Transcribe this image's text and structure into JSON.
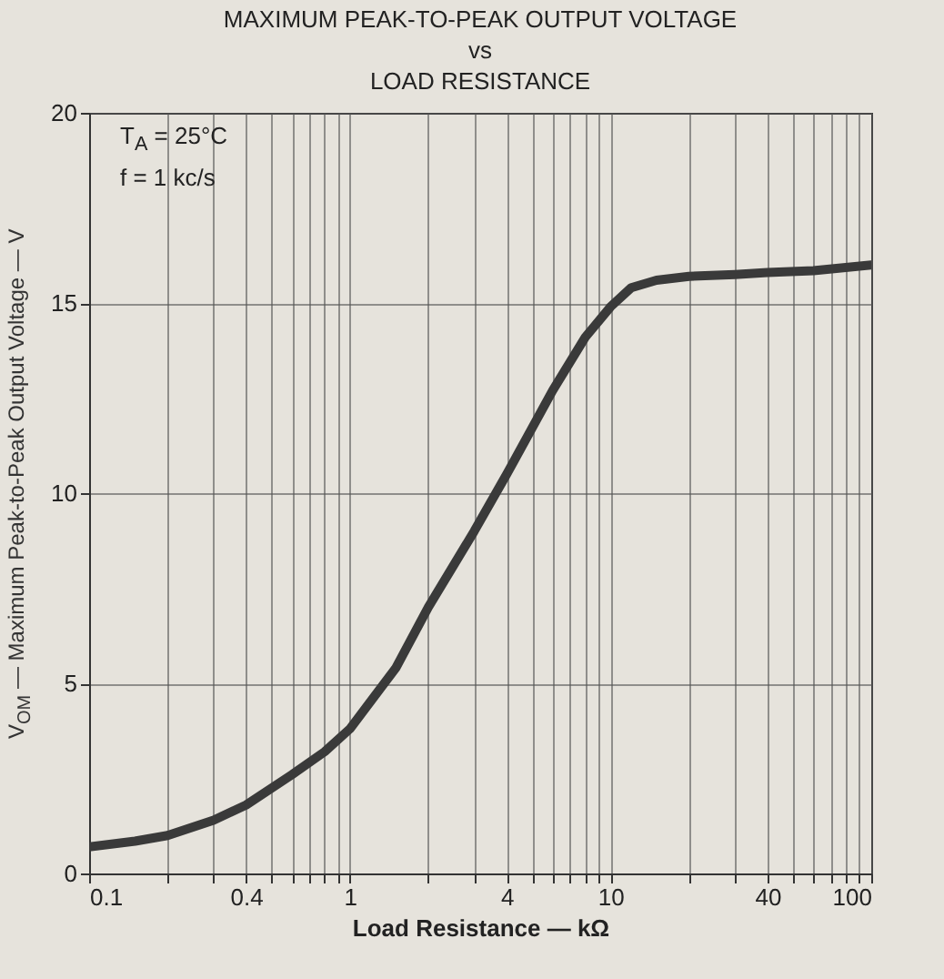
{
  "chart_data": {
    "type": "line",
    "title": "MAXIMUM PEAK-TO-PEAK OUTPUT VOLTAGE\nvs\nLOAD RESISTANCE",
    "xlabel": "Load Resistance — kΩ",
    "ylabel": "V$_{OM}$ — Maximum Peak-to-Peak Output Voltage — V",
    "annotations": [
      "T$_{A}$ = 25°C",
      "f = 1 kc/s"
    ],
    "x": [
      0.1,
      0.15,
      0.2,
      0.3,
      0.4,
      0.6,
      0.8,
      1,
      1.5,
      2,
      3,
      4,
      6,
      8,
      10,
      12,
      15,
      20,
      30,
      40,
      60,
      100
    ],
    "series": [
      {
        "color": "#3a3a3a",
        "values": [
          0.7,
          0.85,
          1.0,
          1.4,
          1.8,
          2.6,
          3.2,
          3.8,
          5.4,
          7.0,
          9.0,
          10.5,
          12.7,
          14.1,
          14.9,
          15.4,
          15.6,
          15.7,
          15.75,
          15.8,
          15.85,
          16.0
        ]
      }
    ],
    "log": "x",
    "xlim": [
      0.1,
      100
    ],
    "ylim": [
      0,
      20
    ],
    "xticks": [
      0.1,
      {
        "value": 0.2,
        "label": null
      },
      {
        "value": 0.3,
        "label": null
      },
      0.4,
      {
        "value": 0.5,
        "label": null
      },
      {
        "value": 0.6,
        "label": null
      },
      {
        "value": 0.7,
        "label": null
      },
      {
        "value": 0.8,
        "label": null
      },
      {
        "value": 0.9,
        "label": null
      },
      1,
      {
        "value": 2,
        "label": null
      },
      {
        "value": 3,
        "label": null
      },
      4,
      {
        "value": 5,
        "label": null
      },
      {
        "value": 6,
        "label": null
      },
      {
        "value": 7,
        "label": null
      },
      {
        "value": 8,
        "label": null
      },
      {
        "value": 9,
        "label": null
      },
      10,
      {
        "value": 20,
        "label": null
      },
      {
        "value": 30,
        "label": null
      },
      40,
      {
        "value": 50,
        "label": null
      },
      {
        "value": 60,
        "label": null
      },
      {
        "value": 70,
        "label": null
      },
      {
        "value": 80,
        "label": null
      },
      {
        "value": 90,
        "label": null
      },
      100
    ],
    "yticks": [
      0,
      5,
      10,
      15,
      20
    ],
    "grid": true,
    "line_style": "solid",
    "marker": "none"
  }
}
